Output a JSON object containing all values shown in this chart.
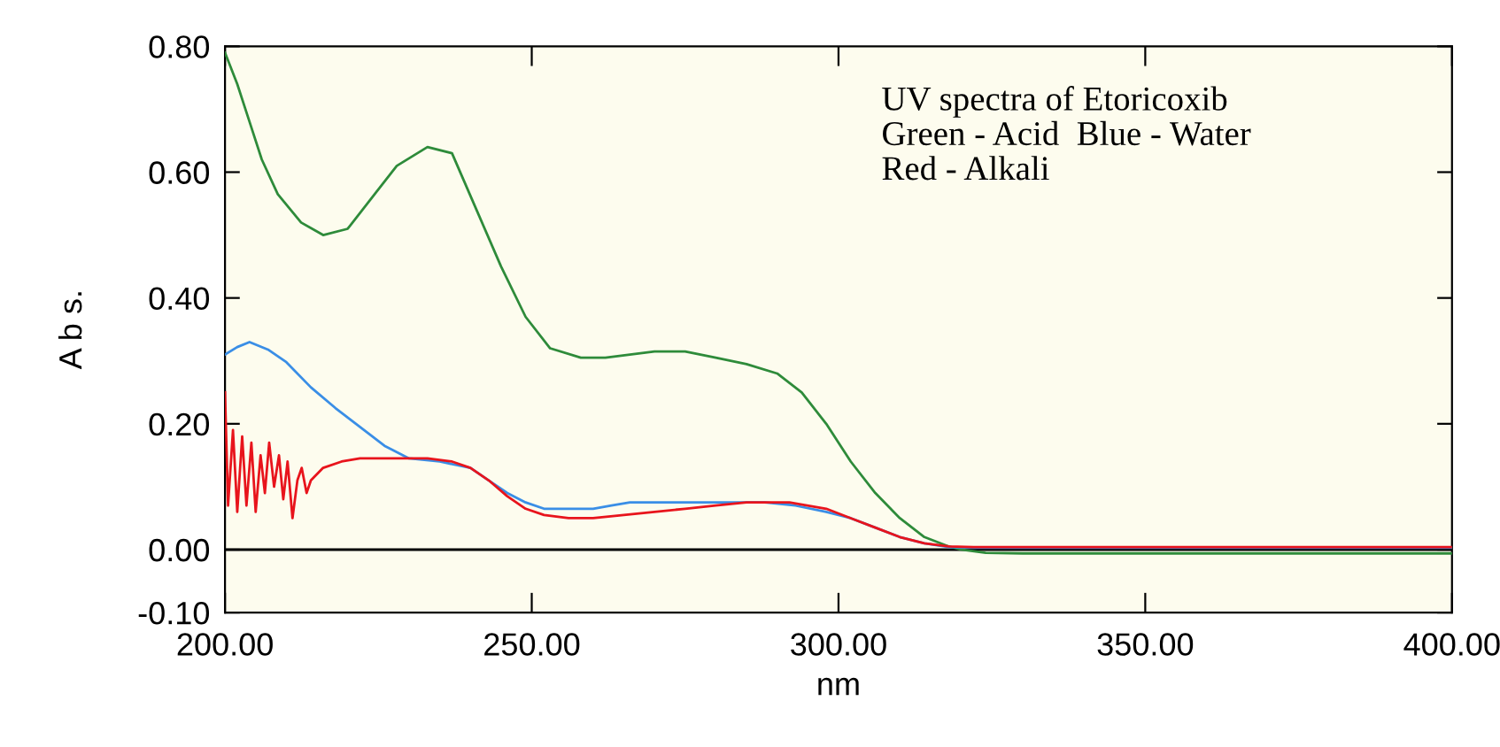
{
  "chart_data": {
    "type": "line",
    "xlabel": "nm",
    "ylabel": "A b s.",
    "xlim": [
      200,
      400
    ],
    "xticks": [
      {
        "value": 200,
        "label": "200.00"
      },
      {
        "value": 250,
        "label": "250.00"
      },
      {
        "value": 300,
        "label": "300.00"
      },
      {
        "value": 350,
        "label": "350.00"
      },
      {
        "value": 400,
        "label": "400.00"
      }
    ],
    "ylim": [
      -0.1,
      0.8
    ],
    "yticks": [
      {
        "value": -0.1,
        "label": "-0.10"
      },
      {
        "value": 0.0,
        "label": "0.00"
      },
      {
        "value": 0.2,
        "label": "0.20"
      },
      {
        "value": 0.4,
        "label": "0.40"
      },
      {
        "value": 0.6,
        "label": "0.60"
      },
      {
        "value": 0.8,
        "label": "0.80"
      }
    ],
    "grid": false,
    "marker": "none",
    "line_style": "solid",
    "ref_lines": [
      {
        "axis": "y",
        "value": 0,
        "label": null,
        "color": "#000000"
      }
    ],
    "annotations": [
      "UV spectra of Etoricoxib\nGreen - Acid  Blue - Water\nRed - Alkali"
    ],
    "series": [
      {
        "color": "#2e8b3a",
        "x": [
          200,
          202,
          204,
          206,
          208.6,
          212.4,
          216,
          220,
          224,
          228,
          233,
          237,
          241,
          245,
          249,
          253,
          258,
          262,
          266,
          270,
          275,
          280,
          285,
          290,
          294,
          298,
          302,
          306,
          310,
          314,
          318,
          320,
          324,
          330,
          350,
          400
        ],
        "values": [
          0.79,
          0.74,
          0.68,
          0.62,
          0.565,
          0.52,
          0.5,
          0.51,
          0.56,
          0.61,
          0.64,
          0.63,
          0.54,
          0.45,
          0.37,
          0.32,
          0.305,
          0.305,
          0.31,
          0.315,
          0.315,
          0.305,
          0.295,
          0.28,
          0.25,
          0.2,
          0.14,
          0.09,
          0.05,
          0.02,
          0.005,
          0.0,
          -0.005,
          -0.006,
          -0.006,
          -0.006
        ]
      },
      {
        "color": "#3a8ee6",
        "x": [
          200,
          202,
          204,
          207,
          210,
          214,
          218,
          222,
          226,
          230,
          235,
          240,
          243,
          246,
          249,
          252,
          256,
          260,
          263,
          266,
          270,
          280,
          288,
          293,
          298,
          302,
          306,
          310,
          314,
          318,
          322,
          350,
          400
        ],
        "values": [
          0.31,
          0.322,
          0.33,
          0.318,
          0.298,
          0.258,
          0.225,
          0.195,
          0.165,
          0.145,
          0.14,
          0.13,
          0.11,
          0.09,
          0.075,
          0.065,
          0.065,
          0.065,
          0.07,
          0.075,
          0.075,
          0.075,
          0.075,
          0.07,
          0.06,
          0.05,
          0.035,
          0.02,
          0.01,
          0.004,
          0.003,
          0.003,
          0.003
        ]
      },
      {
        "color": "#e8141c",
        "x": [
          200,
          200.5,
          201.3,
          202,
          202.8,
          203.5,
          204.3,
          205,
          205.8,
          206.5,
          207.2,
          208,
          208.8,
          209.5,
          210.2,
          211,
          211.8,
          212.5,
          213.3,
          214,
          216,
          219,
          222,
          228,
          233,
          237,
          240,
          243,
          246,
          249,
          252,
          256,
          260,
          265,
          270,
          275,
          280,
          285,
          292,
          298,
          302,
          306,
          310,
          314,
          318,
          322,
          350,
          400
        ],
        "values": [
          0.25,
          0.07,
          0.19,
          0.06,
          0.18,
          0.07,
          0.17,
          0.06,
          0.15,
          0.09,
          0.17,
          0.1,
          0.15,
          0.08,
          0.14,
          0.05,
          0.11,
          0.13,
          0.09,
          0.11,
          0.13,
          0.14,
          0.145,
          0.145,
          0.145,
          0.14,
          0.13,
          0.11,
          0.085,
          0.065,
          0.055,
          0.05,
          0.05,
          0.055,
          0.06,
          0.065,
          0.07,
          0.075,
          0.075,
          0.065,
          0.05,
          0.035,
          0.02,
          0.01,
          0.005,
          0.004,
          0.004,
          0.004
        ]
      }
    ]
  }
}
